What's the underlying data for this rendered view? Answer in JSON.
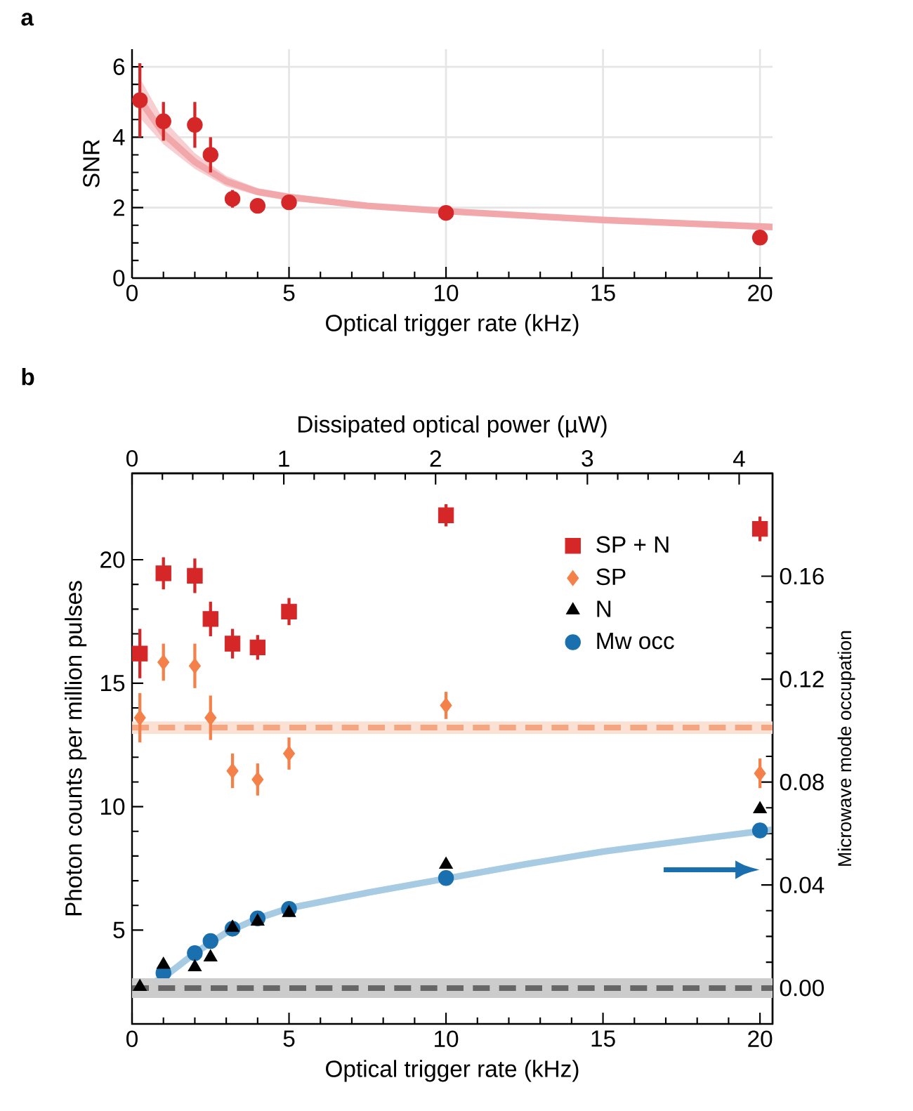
{
  "chart_data": [
    {
      "type": "scatter",
      "title": "a",
      "xlabel": "Optical trigger rate (kHz)",
      "ylabel": "SNR",
      "xlim": [
        0,
        20.4
      ],
      "ylim": [
        0,
        6.5
      ],
      "xticks": [
        0,
        5,
        10,
        15,
        20
      ],
      "yticks": [
        0,
        2,
        4,
        6
      ],
      "grid": true,
      "series": [
        {
          "type": "line",
          "color": "#f2a7aa",
          "x": [
            0.3,
            1,
            2,
            3,
            4,
            5,
            7.5,
            10,
            15,
            20.4
          ],
          "values": [
            5.0,
            4.1,
            3.3,
            2.75,
            2.45,
            2.3,
            2.05,
            1.9,
            1.65,
            1.45
          ],
          "lower": [
            4.5,
            3.8,
            3.1,
            2.6,
            2.35,
            2.2,
            2.0,
            1.85,
            1.6,
            1.4
          ],
          "upper": [
            5.6,
            4.5,
            3.55,
            2.9,
            2.55,
            2.4,
            2.12,
            1.96,
            1.7,
            1.5
          ],
          "marker": "none"
        },
        {
          "color": "#d62728",
          "x": [
            0.25,
            1,
            2,
            2.5,
            3.2,
            4,
            5,
            10,
            20
          ],
          "values": [
            5.05,
            4.45,
            4.35,
            3.5,
            2.25,
            2.05,
            2.15,
            1.85,
            1.15
          ],
          "errors": [
            1.05,
            0.55,
            0.65,
            0.5,
            0.25,
            null,
            null,
            null,
            null
          ],
          "marker": "circle"
        }
      ]
    },
    {
      "type": "scatter",
      "title": "b",
      "xlabel": "Optical trigger rate (kHz)",
      "ylabel": "Photon counts per million pulses",
      "y2label": "Microwave mode occupation",
      "x2label": "Dissipated optical power (µW)",
      "xlim": [
        0,
        20.4
      ],
      "ylim": [
        1.2,
        23.5
      ],
      "xticks": [
        0,
        5,
        10,
        15,
        20
      ],
      "yticks": [
        5,
        10,
        15,
        20
      ],
      "y2lim": [
        -0.014,
        0.2
      ],
      "y2ticks": [
        {
          "value": 0,
          "label": "0.00"
        },
        {
          "value": 0.04,
          "label": "0.04"
        },
        {
          "value": 0.08,
          "label": "0.08"
        },
        {
          "value": 0.12,
          "label": "0.12"
        },
        {
          "value": 0.16,
          "label": "0.16"
        }
      ],
      "x2lim": [
        0,
        4.22
      ],
      "x2ticks": [
        0,
        1,
        2,
        3,
        4
      ],
      "legend": "top right",
      "ref_lines": [
        {
          "axis": "y",
          "value": 13.2,
          "color": "#f4a582",
          "line_style": "dashed"
        },
        {
          "axis": "y",
          "value": 2.65,
          "color": "#666666",
          "line_style": "dashed"
        }
      ],
      "bands": [
        {
          "axis": "y",
          "from": 12.95,
          "to": 13.45,
          "color": "#fbe0d4"
        },
        {
          "axis": "y",
          "from": 2.25,
          "to": 3.05,
          "color": "#cccccc"
        }
      ],
      "series": [
        {
          "name": "SP + N",
          "color": "#d62728",
          "marker": "square",
          "x": [
            0.25,
            1,
            2,
            2.5,
            3.2,
            4,
            5,
            10,
            20
          ],
          "values": [
            16.2,
            19.45,
            19.35,
            17.6,
            16.6,
            16.45,
            17.9,
            21.8,
            21.25
          ],
          "errors": [
            1.0,
            0.65,
            0.7,
            0.7,
            0.6,
            0.5,
            0.55,
            0.45,
            0.5
          ]
        },
        {
          "name": "SP",
          "color": "#f4814a",
          "marker": "diamond",
          "x": [
            0.25,
            1,
            2,
            2.5,
            3.2,
            4,
            5,
            10,
            20
          ],
          "values": [
            13.6,
            15.85,
            15.7,
            13.6,
            11.45,
            11.1,
            12.15,
            14.1,
            11.35
          ],
          "errors": [
            1.0,
            0.75,
            0.9,
            0.9,
            0.7,
            0.65,
            0.65,
            0.55,
            0.6
          ]
        },
        {
          "name": "N",
          "color": "#000000",
          "marker": "triangle",
          "x": [
            0.25,
            1,
            2,
            2.5,
            3.2,
            4,
            5,
            10,
            20
          ],
          "values": [
            2.7,
            3.6,
            3.5,
            3.9,
            5.1,
            5.35,
            5.7,
            7.65,
            9.9
          ]
        },
        {
          "type": "line",
          "axis": "y2",
          "color": "#a6cbe2",
          "marker": "none",
          "x": [
            0.3,
            1,
            2,
            3,
            4,
            5,
            7.5,
            10,
            12.5,
            15,
            17.5,
            20.4
          ],
          "values": [
            0.0,
            0.004,
            0.0135,
            0.0215,
            0.027,
            0.031,
            0.037,
            0.0425,
            0.048,
            0.053,
            0.057,
            0.0615
          ]
        },
        {
          "name": "Mw occ",
          "axis": "y2",
          "color": "#1a6faf",
          "marker": "circle",
          "x": [
            1,
            2,
            2.5,
            3.2,
            4,
            5,
            10,
            20
          ],
          "values": [
            0.0058,
            0.0135,
            0.0182,
            0.023,
            0.027,
            0.0307,
            0.0427,
            0.0612
          ]
        }
      ]
    }
  ]
}
